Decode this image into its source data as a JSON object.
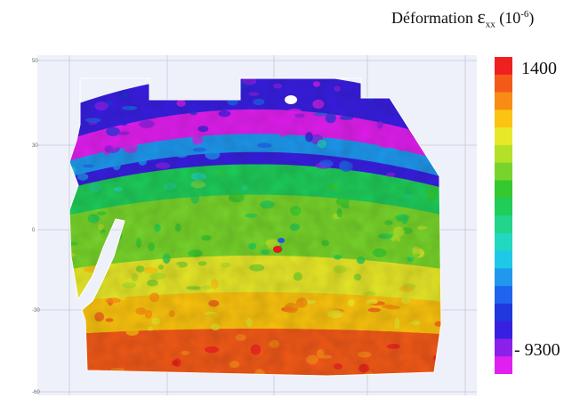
{
  "title": {
    "text": "Déformation",
    "symbol": "ε",
    "subscript": "xx",
    "unit_prefix": "(10",
    "unit_exponent": "-6",
    "unit_suffix": ")"
  },
  "colorbar": {
    "max_label": "1400",
    "min_label": "- 9300",
    "colors": [
      "#ee2020",
      "#f35a1a",
      "#f88c14",
      "#fbc412",
      "#e8e82a",
      "#b4e02a",
      "#78d42c",
      "#36c830",
      "#20cc5a",
      "#22d48c",
      "#22d8c0",
      "#20c8e8",
      "#2098ee",
      "#2064ee",
      "#2038dc",
      "#3820e0",
      "#8c20e8",
      "#e020ee"
    ]
  },
  "chart_data": {
    "type": "heatmap",
    "title": "Déformation εxx (10-6)",
    "colorbar_range": [
      -9300,
      1400
    ],
    "y_ticks": [
      "50",
      "30",
      "0",
      "-30",
      "-60"
    ],
    "grid": true,
    "bands": [
      {
        "from_top": 0.0,
        "to_top": 0.12,
        "value": -8000
      },
      {
        "from_top": 0.12,
        "to_top": 0.2,
        "value": -9300
      },
      {
        "from_top": 0.2,
        "to_top": 0.26,
        "value": -6000
      },
      {
        "from_top": 0.26,
        "to_top": 0.3,
        "value": -7800
      },
      {
        "from_top": 0.3,
        "to_top": 0.4,
        "value": -3800
      },
      {
        "from_top": 0.4,
        "to_top": 0.6,
        "value": -2600
      },
      {
        "from_top": 0.6,
        "to_top": 0.72,
        "value": -1300
      },
      {
        "from_top": 0.72,
        "to_top": 0.84,
        "value": -200
      },
      {
        "from_top": 0.84,
        "to_top": 1.0,
        "value": 1000
      }
    ]
  }
}
